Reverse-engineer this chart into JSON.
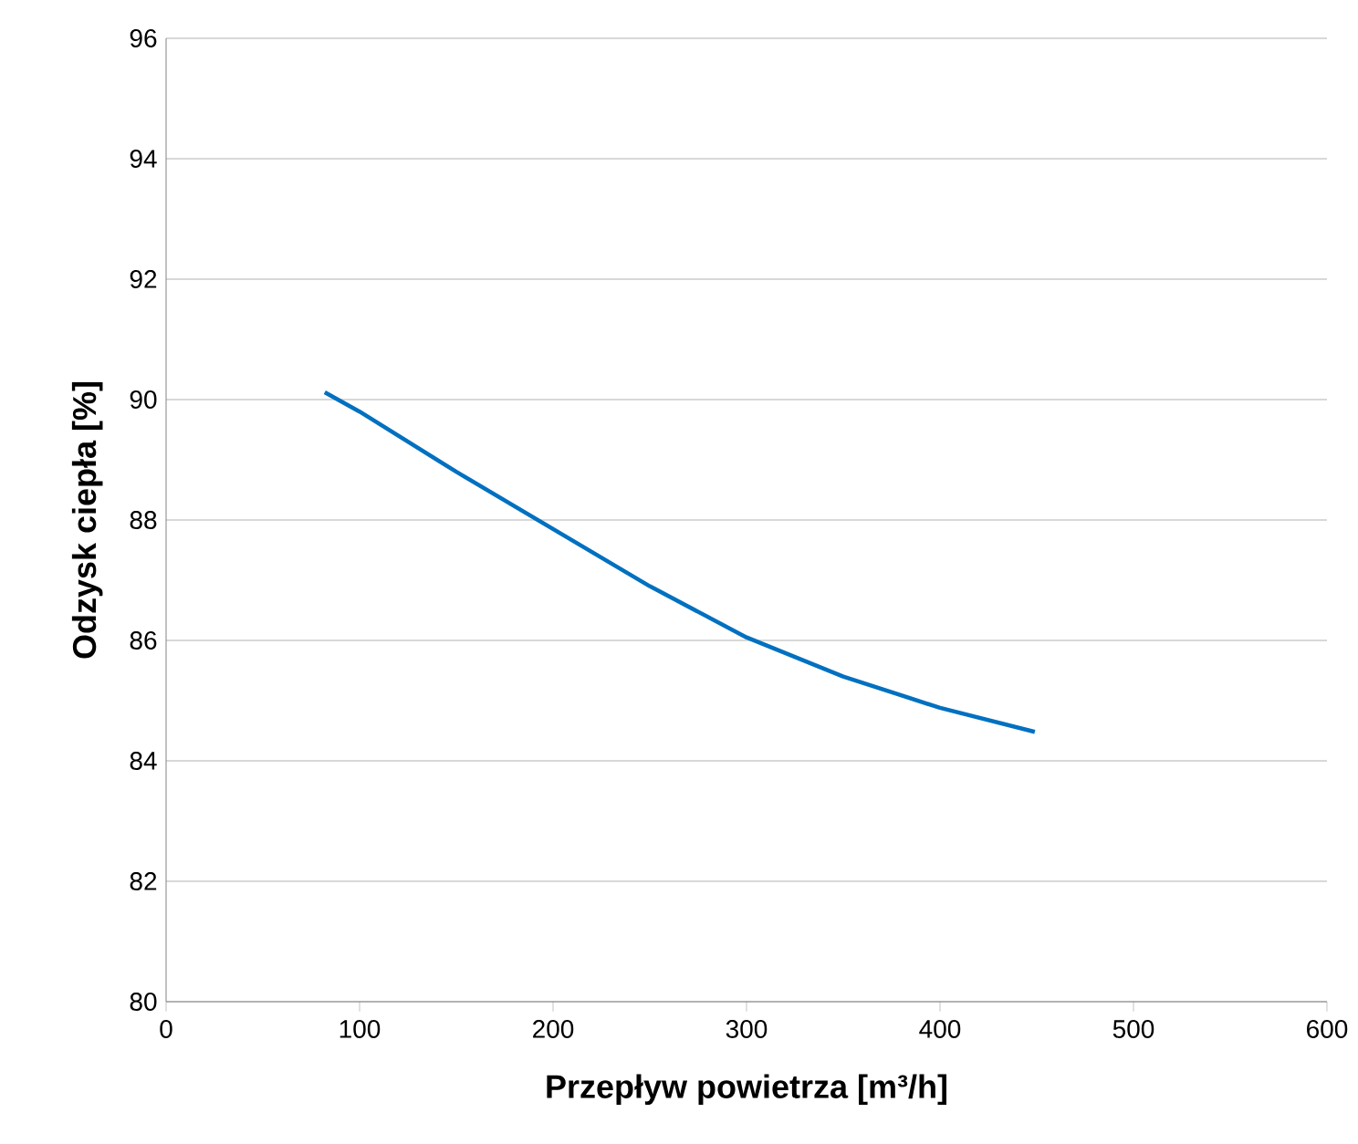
{
  "chart_data": {
    "type": "line",
    "xlabel": "Przepływ powietrza [m³/h]",
    "ylabel": "Odzysk ciepła [%]",
    "xlim": [
      0,
      600
    ],
    "xticks": [
      0,
      100,
      200,
      300,
      400,
      500,
      600
    ],
    "ylim": [
      80,
      96
    ],
    "yticks": [
      80,
      82,
      84,
      86,
      88,
      90,
      92,
      94,
      96
    ],
    "grid": "y",
    "marker": "none",
    "line_style": "solid",
    "series": [
      {
        "color": "#0070c0",
        "x": [
          82,
          100,
          150,
          200,
          250,
          300,
          350,
          400,
          449
        ],
        "values": [
          90.12,
          89.8,
          88.8,
          87.85,
          86.9,
          86.05,
          85.4,
          84.88,
          84.48
        ]
      }
    ]
  }
}
